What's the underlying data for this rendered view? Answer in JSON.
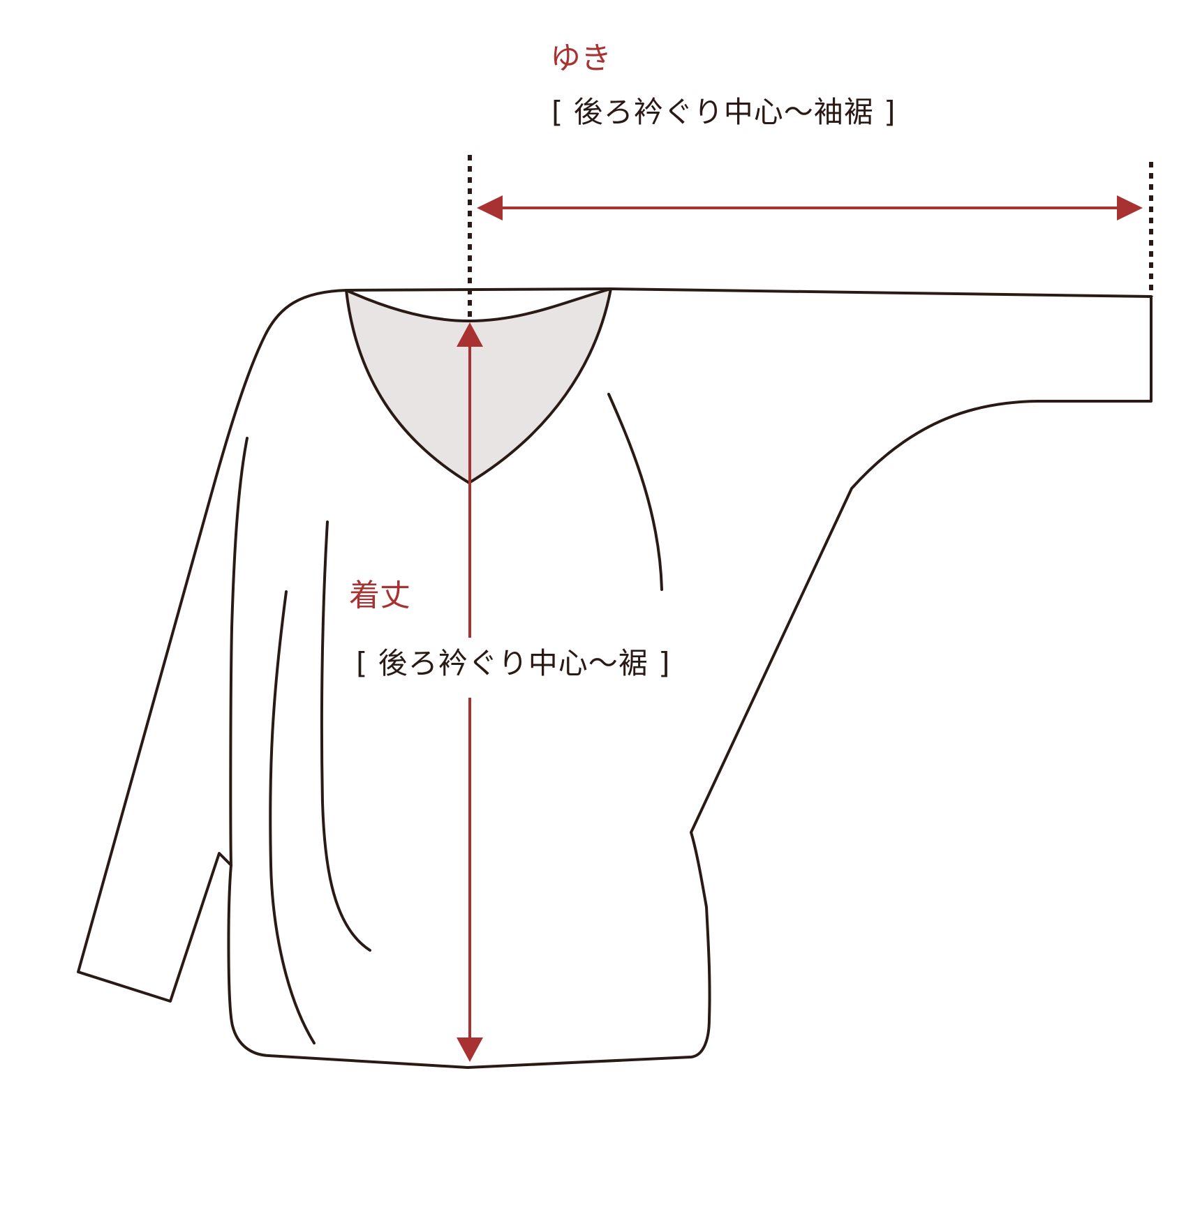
{
  "colors": {
    "accent": "#a83232",
    "outline": "#2a1a16",
    "collar_fill": "#e8e4e3",
    "background": "#ffffff"
  },
  "labels": {
    "sleeve_length": {
      "title": "ゆき",
      "note": "[ 後ろ衿ぐり中心〜袖裾 ]"
    },
    "body_length": {
      "title": "着丈",
      "note": "[ 後ろ衿ぐり中心〜裾 ]"
    }
  }
}
